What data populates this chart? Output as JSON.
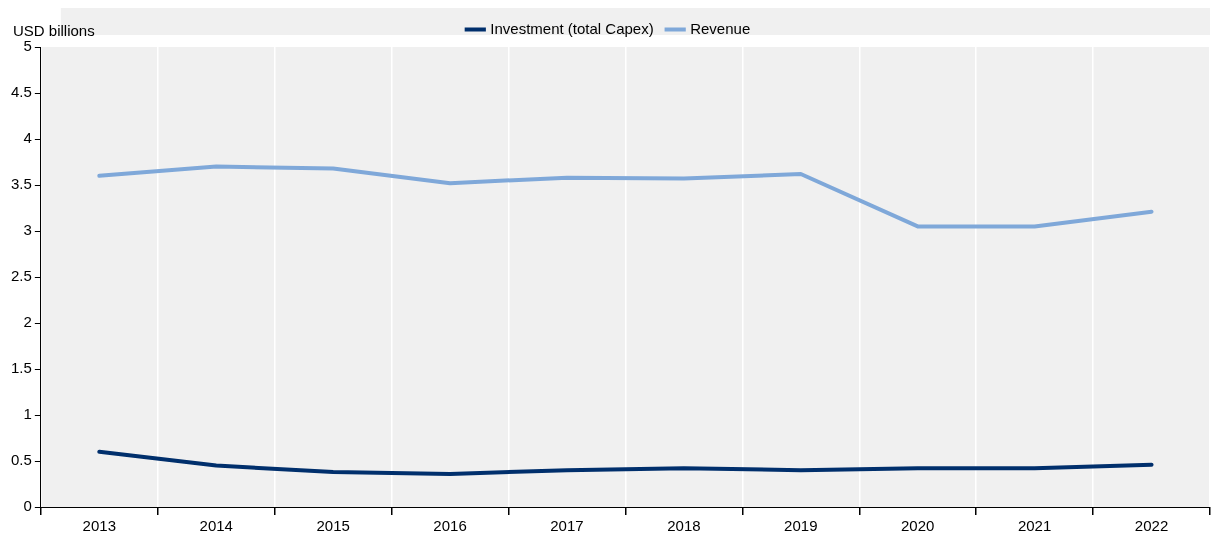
{
  "chart_data": {
    "type": "line",
    "ylabel": "USD billions",
    "categories": [
      "2013",
      "2014",
      "2015",
      "2016",
      "2017",
      "2018",
      "2019",
      "2020",
      "2021",
      "2022"
    ],
    "series": [
      {
        "name": "Investment (total Capex)",
        "color": "#002f6c",
        "values": [
          0.6,
          0.45,
          0.38,
          0.36,
          0.4,
          0.42,
          0.4,
          0.42,
          0.42,
          0.46
        ]
      },
      {
        "name": "Revenue",
        "color": "#7fa8d9",
        "values": [
          3.6,
          3.7,
          3.68,
          3.52,
          3.58,
          3.57,
          3.62,
          3.05,
          3.05,
          3.21
        ]
      }
    ],
    "ylim": [
      0,
      5
    ],
    "yticks": [
      0,
      0.5,
      1,
      1.5,
      2,
      2.5,
      3,
      3.5,
      4,
      4.5,
      5
    ],
    "grid": "x",
    "legend": "top",
    "marker": "none",
    "line_style": "solid"
  }
}
